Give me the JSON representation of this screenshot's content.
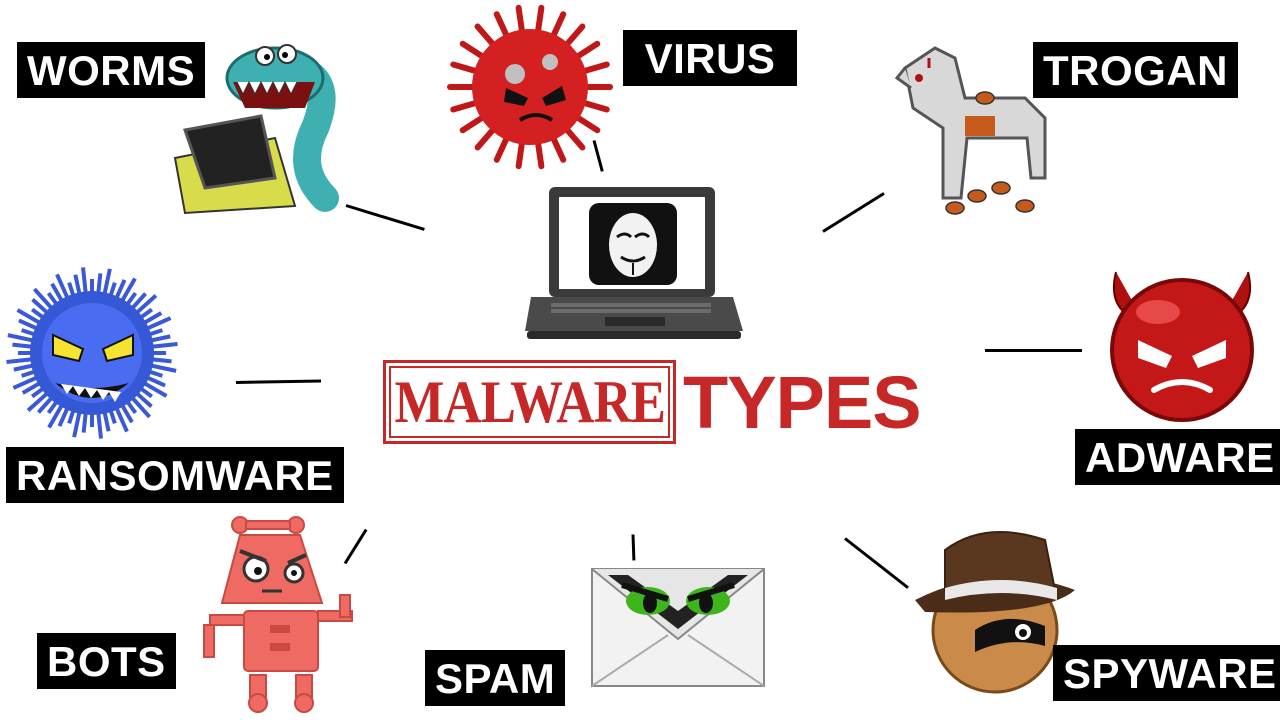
{
  "title": {
    "stamp_text": "MALWARE",
    "suffix_text": "TYPES",
    "accent_color": "#c62828"
  },
  "center": {
    "icon": "laptop-anonymous-mask-icon"
  },
  "malware_types": [
    {
      "id": "worms",
      "label": "WORMS",
      "icon": "worm-eating-laptop-icon"
    },
    {
      "id": "virus",
      "label": "VIRUS",
      "icon": "red-spiky-virus-icon"
    },
    {
      "id": "trogan",
      "label": "TROGAN",
      "icon": "trojan-horse-with-bugs-icon"
    },
    {
      "id": "ransomware",
      "label": "RANSOMWARE",
      "icon": "blue-furry-monster-icon"
    },
    {
      "id": "adware",
      "label": "ADWARE",
      "icon": "red-devil-ball-icon"
    },
    {
      "id": "bots",
      "label": "BOTS",
      "icon": "angry-robot-icon"
    },
    {
      "id": "spam",
      "label": "SPAM",
      "icon": "evil-envelope-icon"
    },
    {
      "id": "spyware",
      "label": "SPYWARE",
      "icon": "spy-hat-ball-icon"
    }
  ],
  "colors": {
    "label_bg": "#000000",
    "label_text": "#ffffff",
    "background": "#ffffff"
  }
}
